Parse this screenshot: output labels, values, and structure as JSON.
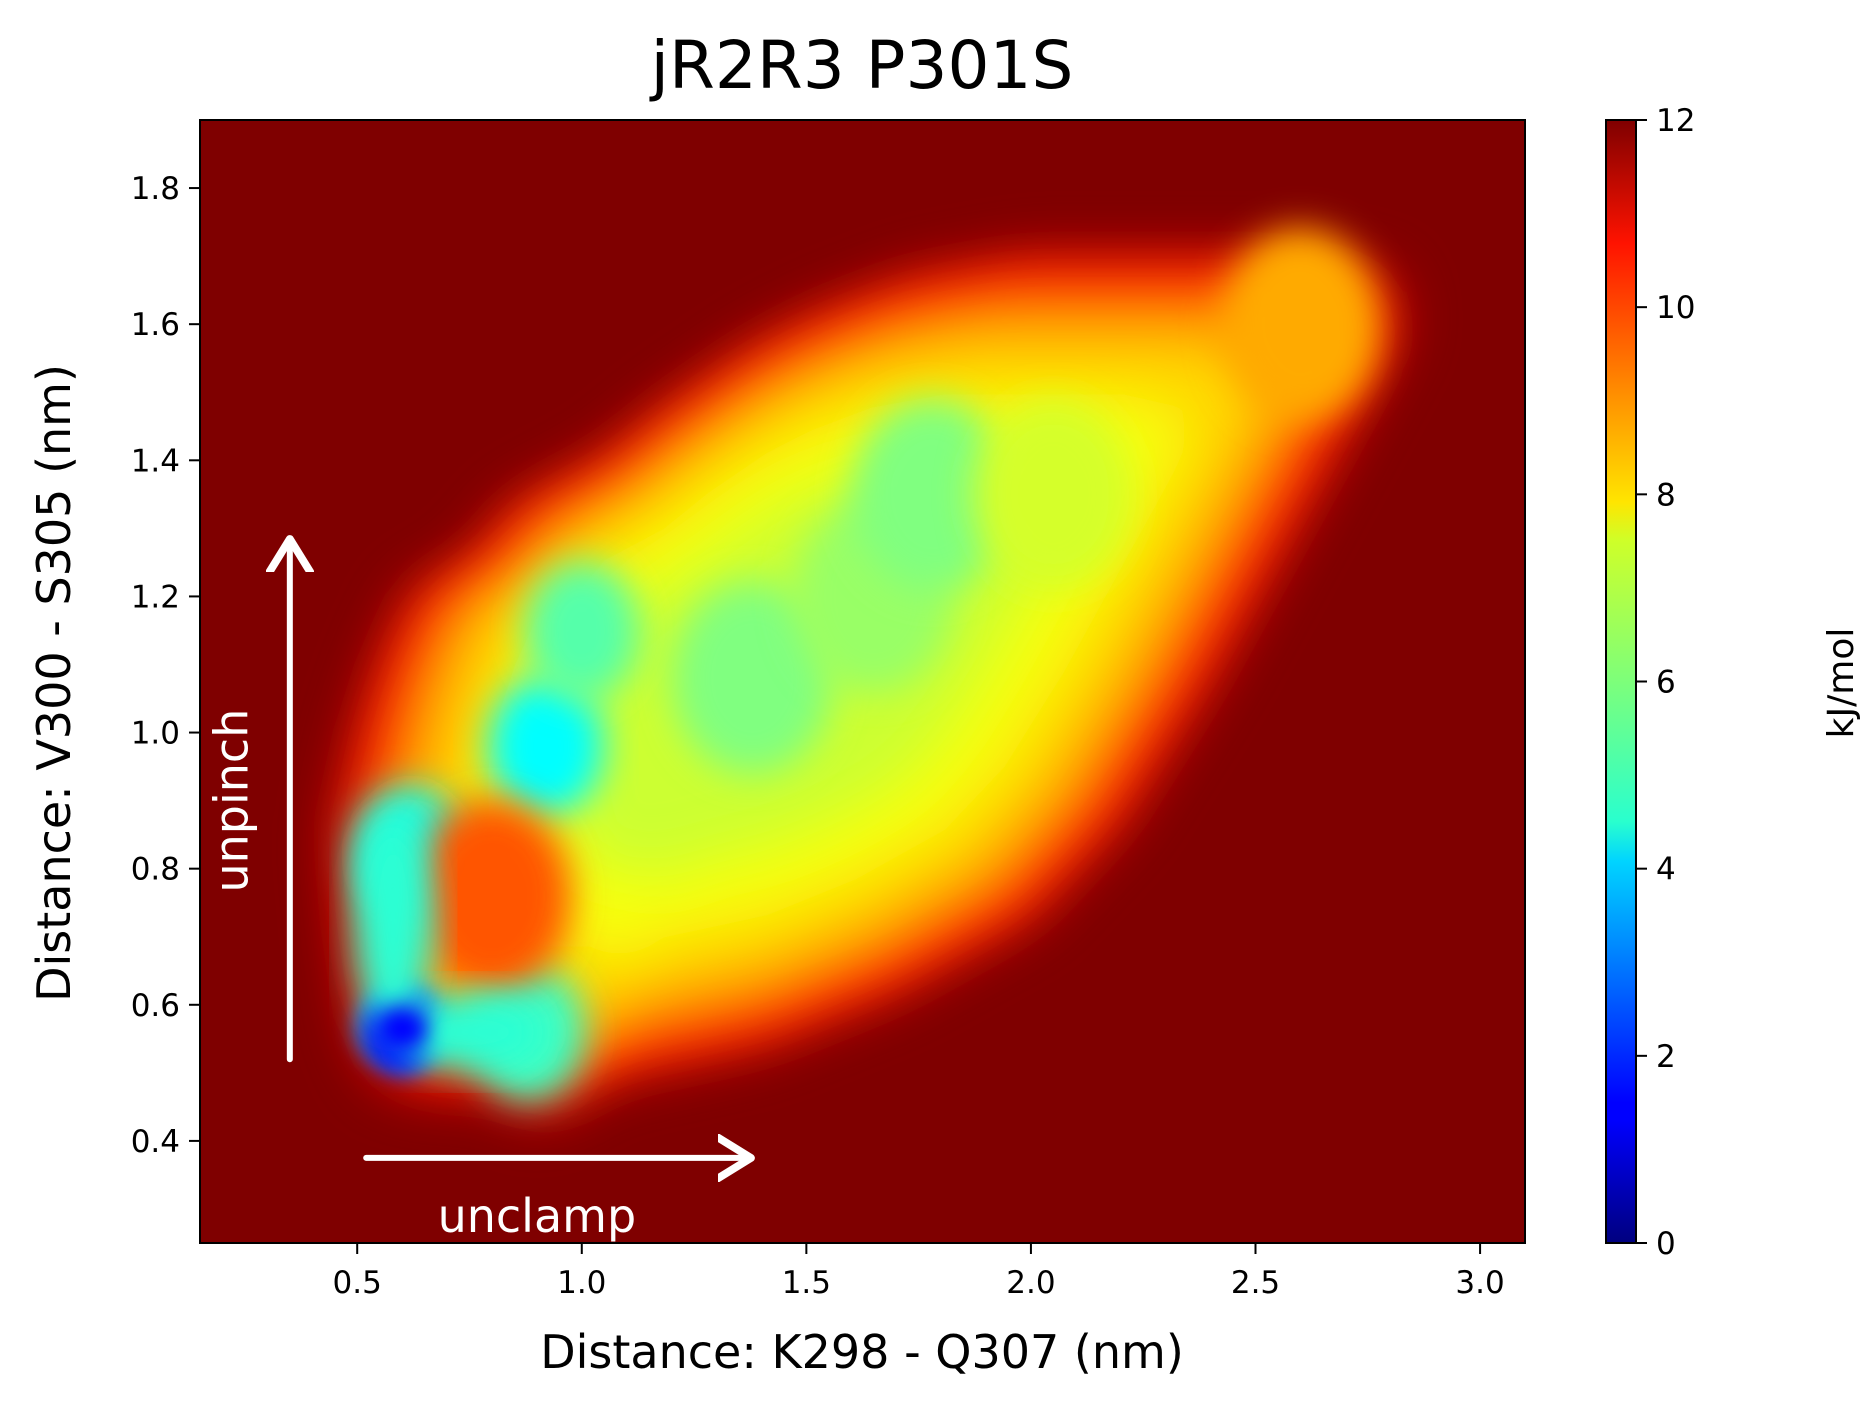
{
  "chart_data": {
    "type": "heatmap",
    "title": "jR2R3 P301S",
    "xlabel": "Distance: K298 - Q307 (nm)",
    "ylabel": "Distance: V300 - S305 (nm)",
    "xlim": [
      0.15,
      3.1
    ],
    "ylim": [
      0.25,
      1.9
    ],
    "xticks": [
      "0.5",
      "1.0",
      "1.5",
      "2.0",
      "2.5",
      "3.0"
    ],
    "yticks": [
      "0.4",
      "0.6",
      "0.8",
      "1.0",
      "1.2",
      "1.4",
      "1.6",
      "1.8"
    ],
    "colorbar": {
      "label": "kJ/mol",
      "range": [
        0,
        12
      ],
      "ticks": [
        "0",
        "2",
        "4",
        "6",
        "8",
        "10",
        "12"
      ],
      "colormap": "jet"
    },
    "background_value": 12,
    "region_outline": [
      [
        0.5,
        0.56
      ],
      [
        0.55,
        0.49
      ],
      [
        0.65,
        0.47
      ],
      [
        0.8,
        0.47
      ],
      [
        0.9,
        0.43
      ],
      [
        1.05,
        0.49
      ],
      [
        1.4,
        0.54
      ],
      [
        1.7,
        0.62
      ],
      [
        2.0,
        0.73
      ],
      [
        2.2,
        0.87
      ],
      [
        2.4,
        1.08
      ],
      [
        2.6,
        1.32
      ],
      [
        2.75,
        1.5
      ],
      [
        2.83,
        1.6
      ],
      [
        2.8,
        1.67
      ],
      [
        2.6,
        1.7
      ],
      [
        2.3,
        1.7
      ],
      [
        2.0,
        1.7
      ],
      [
        1.75,
        1.67
      ],
      [
        1.55,
        1.62
      ],
      [
        1.4,
        1.57
      ],
      [
        1.2,
        1.48
      ],
      [
        1.05,
        1.4
      ],
      [
        0.85,
        1.33
      ],
      [
        0.75,
        1.25
      ],
      [
        0.62,
        1.2
      ],
      [
        0.55,
        1.1
      ],
      [
        0.5,
        1.0
      ],
      [
        0.45,
        0.85
      ],
      [
        0.47,
        0.7
      ]
    ],
    "energy_wells": [
      {
        "x": 0.6,
        "y": 0.565,
        "value": 1.5
      },
      {
        "x": 0.62,
        "y": 0.82,
        "value": 4.8
      },
      {
        "x": 0.88,
        "y": 0.56,
        "value": 5.2
      },
      {
        "x": 0.92,
        "y": 0.98,
        "value": 4.5
      },
      {
        "x": 1.0,
        "y": 1.15,
        "value": 5.5
      },
      {
        "x": 1.38,
        "y": 1.08,
        "value": 6.0
      },
      {
        "x": 1.65,
        "y": 1.2,
        "value": 6.3
      },
      {
        "x": 1.78,
        "y": 1.35,
        "value": 6.0
      },
      {
        "x": 2.05,
        "y": 1.35,
        "value": 7.0
      },
      {
        "x": 0.8,
        "y": 0.76,
        "value": 9.5
      },
      {
        "x": 2.6,
        "y": 1.6,
        "value": 8.5
      }
    ],
    "annotations": [
      {
        "text": "unpinch",
        "arrow_from": [
          0.35,
          0.52
        ],
        "arrow_to": [
          0.35,
          1.28
        ],
        "text_pos": [
          0.22,
          0.9
        ],
        "color": "#ffffff"
      },
      {
        "text": "unclamp",
        "arrow_from": [
          0.52,
          0.375
        ],
        "arrow_to": [
          1.37,
          0.375
        ],
        "text_pos": [
          0.9,
          0.29
        ],
        "color": "#ffffff"
      }
    ]
  }
}
